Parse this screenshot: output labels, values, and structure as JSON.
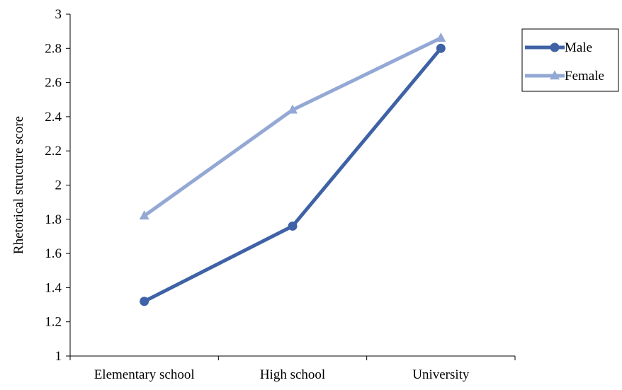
{
  "chart_data": {
    "type": "line",
    "categories": [
      "Elementary school",
      "High school",
      "University"
    ],
    "series": [
      {
        "name": "Male",
        "values": [
          1.32,
          1.76,
          2.8
        ],
        "color": "#3f62a6",
        "marker": "circle"
      },
      {
        "name": "Female",
        "values": [
          1.82,
          2.44,
          2.86
        ],
        "color": "#93a8d4",
        "marker": "triangle"
      }
    ],
    "title": "",
    "xlabel": "",
    "ylabel": "Rhetorical structure score",
    "ylim": [
      1,
      3
    ],
    "yticks": [
      "1",
      "1.2",
      "1.4",
      "1.6",
      "1.8",
      "2",
      "2.2",
      "2.4",
      "2.6",
      "2.8",
      "3"
    ],
    "grid": false,
    "legend_position": "top-right"
  }
}
